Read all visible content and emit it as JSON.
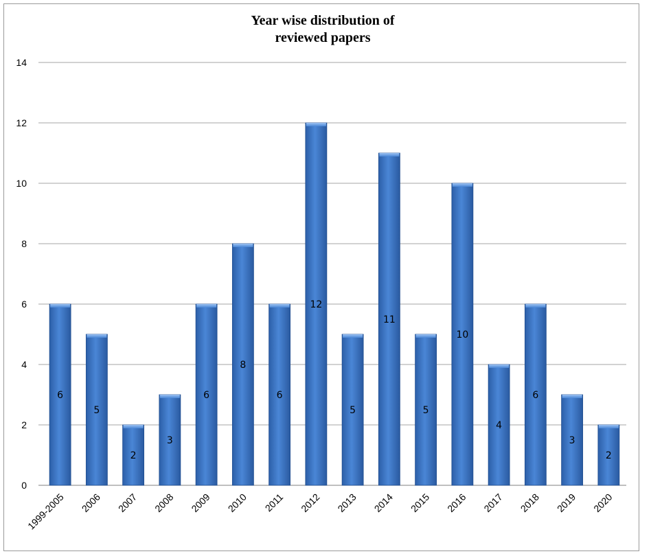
{
  "chart_data": {
    "type": "bar",
    "title_line1": "Year wise distribution of",
    "title_line2": "reviewed papers",
    "xlabel": "",
    "ylabel": "",
    "ylim": [
      0,
      14
    ],
    "yticks": [
      "0",
      "2",
      "4",
      "6",
      "8",
      "10",
      "12",
      "14"
    ],
    "grid": true,
    "legend": "none",
    "categories": [
      "1999-2005",
      "2006",
      "2007",
      "2008",
      "2009",
      "2010",
      "2011",
      "2012",
      "2013",
      "2014",
      "2015",
      "2016",
      "2017",
      "2018",
      "2019",
      "2020"
    ],
    "values": [
      6,
      5,
      2,
      3,
      6,
      8,
      6,
      12,
      5,
      11,
      5,
      10,
      4,
      6,
      3,
      2
    ],
    "bar_color": "#3a74c4",
    "bar_edge_color": "#1f4d8f"
  }
}
